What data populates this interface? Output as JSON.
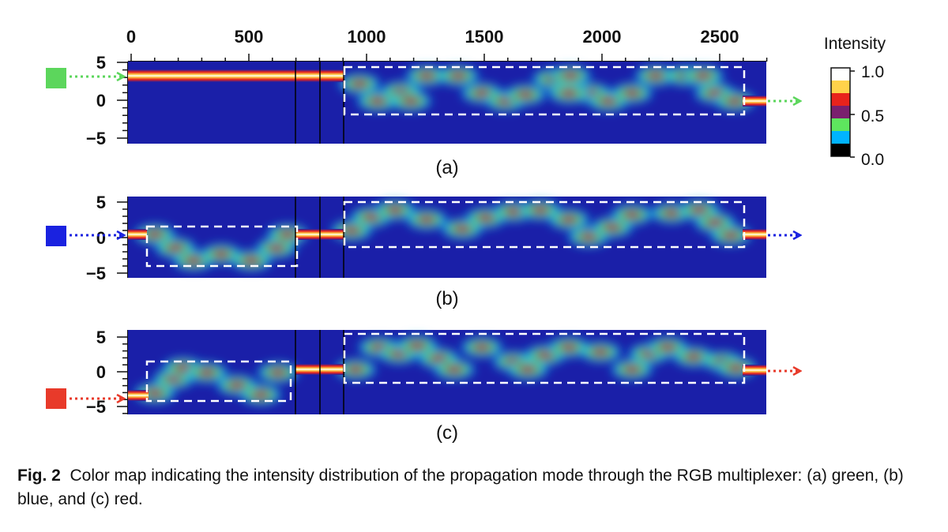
{
  "x_axis": {
    "ticks": [
      0,
      500,
      1000,
      1500,
      2000,
      2500
    ],
    "range": [
      0,
      2700
    ]
  },
  "y_axis": {
    "ticks": [
      5,
      0,
      -5
    ],
    "range": [
      -6,
      5
    ]
  },
  "colorbar": {
    "title": "Intensity",
    "ticks": [
      "1.0",
      "0.5",
      "0.0"
    ],
    "colors": [
      "#000000",
      "#00b4ff",
      "#5ee65e",
      "#7a1f6e",
      "#e8231c",
      "#ffd24a",
      "#ffffff"
    ]
  },
  "background_color": "#1a1fa8",
  "panels": [
    {
      "label": "(a)",
      "input_color": "#5cd65c",
      "input_y": 3,
      "output_y": 0
    },
    {
      "label": "(b)",
      "input_color": "#1a22e0",
      "input_y": 0,
      "output_y": 0
    },
    {
      "label": "(c)",
      "input_color": "#e83a2a",
      "input_y": -3.5,
      "output_y": 0
    }
  ],
  "caption": {
    "label": "Fig. 2",
    "text": "Color map indicating the intensity distribution of the propagation mode through the RGB multiplexer: (a) green, (b) blue, and (c) red."
  }
}
